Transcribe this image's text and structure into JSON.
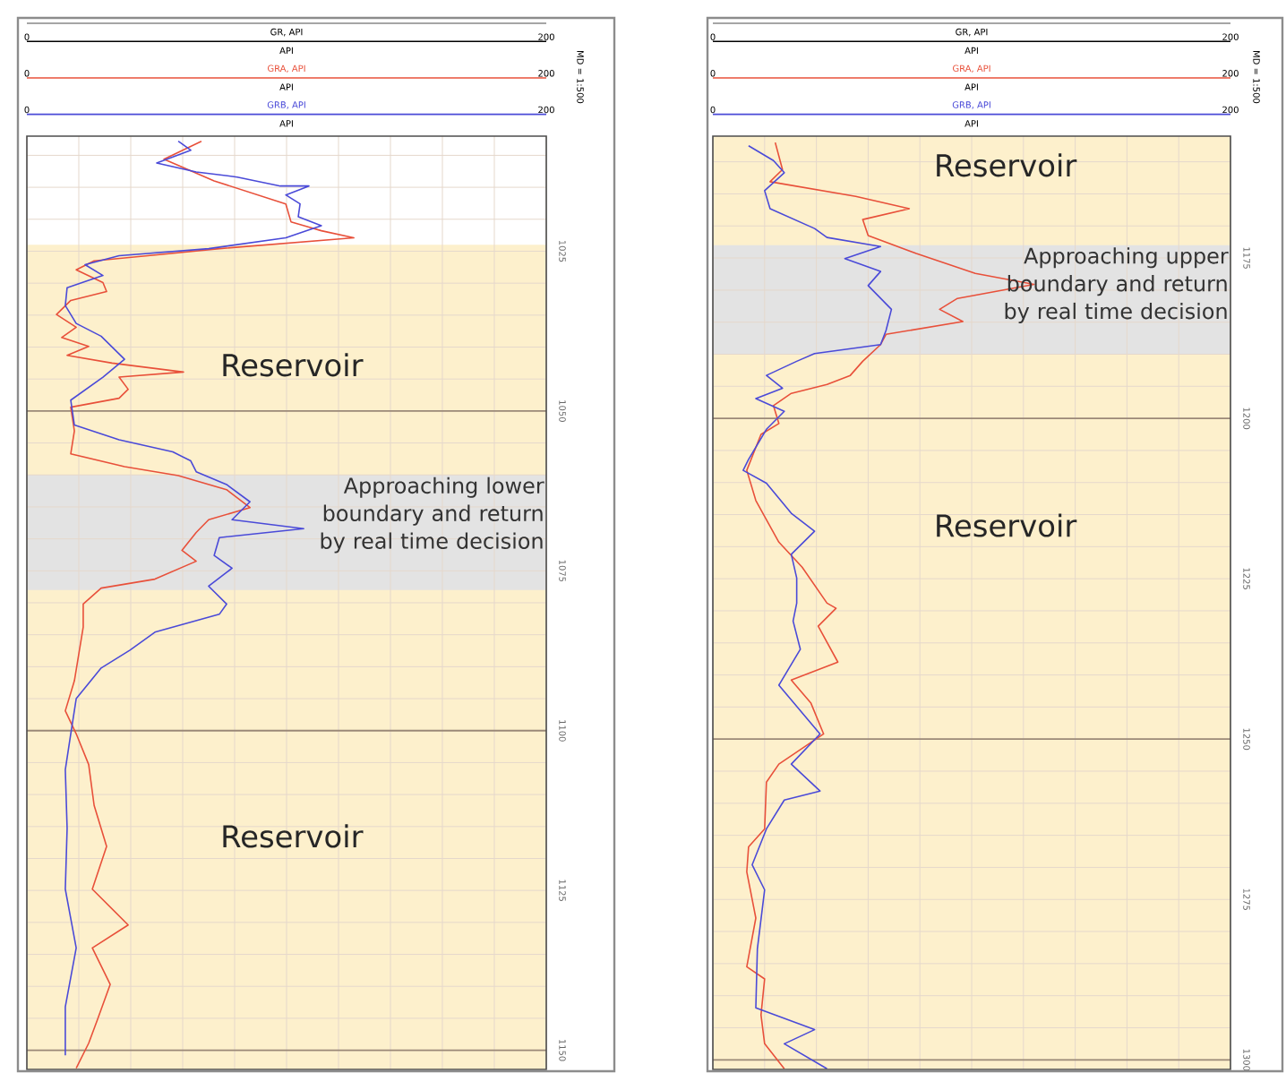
{
  "chart_data": [
    {
      "type": "line",
      "xlabel": "GR, API",
      "legend": "top",
      "grid": true,
      "xlim": [
        0,
        200
      ],
      "xticks": [
        0,
        {
          "value": 20,
          "label": null
        },
        {
          "value": 40,
          "label": null
        },
        {
          "value": 60,
          "label": null
        },
        {
          "value": 80,
          "label": null
        },
        {
          "value": 100,
          "label": null
        },
        {
          "value": 120,
          "label": null
        },
        {
          "value": 140,
          "label": null
        },
        {
          "value": 160,
          "label": null
        },
        {
          "value": 180,
          "label": null
        },
        200
      ],
      "ylim": [
        1153,
        1007
      ],
      "yticks": [
        {
          "value": 1010,
          "label": null
        },
        {
          "value": 1015,
          "label": null
        },
        {
          "value": 1020,
          "label": null
        },
        1025,
        {
          "value": 1030,
          "label": null
        },
        {
          "value": 1035,
          "label": null
        },
        {
          "value": 1040,
          "label": null
        },
        {
          "value": 1045,
          "label": null
        },
        1050,
        {
          "value": 1055,
          "label": null
        },
        {
          "value": 1060,
          "label": null
        },
        {
          "value": 1065,
          "label": null
        },
        {
          "value": 1070,
          "label": null
        },
        1075,
        {
          "value": 1080,
          "label": null
        },
        {
          "value": 1085,
          "label": null
        },
        {
          "value": 1090,
          "label": null
        },
        {
          "value": 1095,
          "label": null
        },
        1100,
        {
          "value": 1105,
          "label": null
        },
        {
          "value": 1110,
          "label": null
        },
        {
          "value": 1115,
          "label": null
        },
        {
          "value": 1120,
          "label": null
        },
        1125,
        {
          "value": 1130,
          "label": null
        },
        {
          "value": 1135,
          "label": null
        },
        {
          "value": 1140,
          "label": null
        },
        {
          "value": 1145,
          "label": null
        },
        1150
      ],
      "bands": [
        {
          "axis": "y",
          "from": 1024,
          "to": 1153,
          "color": "#fdf0cc"
        },
        {
          "axis": "y",
          "from": 1060,
          "to": 1078,
          "color": "#e3e3e3",
          "label": "Approaching lower  boundary and return by real time decision"
        }
      ],
      "series": [
        {
          "name": "GRA, API",
          "color": "#e8503a",
          "x": [
            67.2,
            52.8,
            72.1,
            99.7,
            101.7,
            113.4,
            125.9,
            74.1,
            46.6,
            25.9,
            19.0,
            29.3,
            30.7,
            16.9,
            11.4,
            19.0,
            13.4,
            23.8,
            15.5,
            32.8,
            60.3,
            35.5,
            39.0,
            35.5,
            16.9,
            18.3,
            16.9,
            37.6,
            58.3,
            76.9,
            85.9,
            70.0,
            65.2,
            59.7,
            65.2,
            49.3,
            28.6,
            21.7,
            21.7,
            18.3,
            14.8,
            19.0,
            23.8,
            25.9,
            30.7,
            25.2,
            39.0,
            25.2,
            32.1,
            27.2,
            23.8,
            19.0
          ],
          "values": [
            1007.8,
            1010.6,
            1014.0,
            1017.6,
            1020.4,
            1021.8,
            1022.9,
            1024.6,
            1025.7,
            1026.5,
            1027.9,
            1029.9,
            1031.3,
            1032.7,
            1034.9,
            1036.9,
            1038.5,
            1039.9,
            1041.3,
            1042.5,
            1043.9,
            1044.7,
            1046.6,
            1048.0,
            1049.4,
            1053.1,
            1056.7,
            1058.7,
            1060.1,
            1062.3,
            1065.1,
            1067.0,
            1069.0,
            1071.8,
            1073.5,
            1076.3,
            1077.7,
            1080.2,
            1083.8,
            1092.2,
            1096.9,
            1100.5,
            1105.3,
            1111.7,
            1118.1,
            1124.8,
            1130.4,
            1134.0,
            1139.7,
            1145.2,
            1148.9,
            1152.8
          ]
        },
        {
          "name": "GRB, API",
          "color": "#4a4ad8",
          "x": [
            58.3,
            63.1,
            50.0,
            65.2,
            81.0,
            97.6,
            108.6,
            99.7,
            105.2,
            104.5,
            113.4,
            99.7,
            70.0,
            35.5,
            22.4,
            29.3,
            15.5,
            14.8,
            19.0,
            28.6,
            37.6,
            29.3,
            16.9,
            18.3,
            35.5,
            56.2,
            63.1,
            65.2,
            76.9,
            85.9,
            79.0,
            106.6,
            74.1,
            72.1,
            79.0,
            70.0,
            76.9,
            74.1,
            49.3,
            39.7,
            28.6,
            19.0,
            16.9,
            14.8,
            15.5,
            14.8,
            19.0,
            14.8,
            14.8
          ],
          "values": [
            1007.8,
            1009.2,
            1011.2,
            1012.6,
            1013.4,
            1014.8,
            1014.8,
            1016.2,
            1017.6,
            1019.6,
            1021.0,
            1022.9,
            1024.6,
            1025.7,
            1027.1,
            1028.8,
            1030.7,
            1033.5,
            1036.3,
            1038.3,
            1041.9,
            1044.7,
            1048.3,
            1052.2,
            1054.5,
            1056.4,
            1057.8,
            1059.5,
            1061.5,
            1064.2,
            1067.0,
            1068.4,
            1069.8,
            1072.6,
            1074.6,
            1077.4,
            1080.2,
            1081.8,
            1084.6,
            1087.4,
            1090.2,
            1095.0,
            1100.5,
            1106.1,
            1115.3,
            1124.8,
            1134.0,
            1143.2,
            1150.8
          ]
        }
      ],
      "annotations": [
        "API",
        "API",
        "API",
        "MD = 1:500",
        "Reservoir",
        "Reservoir",
        "0",
        "200",
        "0",
        "200"
      ]
    },
    {
      "type": "line",
      "xlabel": "GR, API",
      "legend": "top",
      "grid": true,
      "xlim": [
        0,
        200
      ],
      "xticks": [
        0,
        {
          "value": 20,
          "label": null
        },
        {
          "value": 40,
          "label": null
        },
        {
          "value": 60,
          "label": null
        },
        {
          "value": 80,
          "label": null
        },
        {
          "value": 100,
          "label": null
        },
        {
          "value": 120,
          "label": null
        },
        {
          "value": 140,
          "label": null
        },
        {
          "value": 160,
          "label": null
        },
        {
          "value": 180,
          "label": null
        },
        200
      ],
      "ylim": [
        1301.5,
        1156
      ],
      "yticks": [
        {
          "value": 1160,
          "label": null
        },
        {
          "value": 1165,
          "label": null
        },
        {
          "value": 1170,
          "label": null
        },
        1175,
        {
          "value": 1180,
          "label": null
        },
        {
          "value": 1185,
          "label": null
        },
        {
          "value": 1190,
          "label": null
        },
        {
          "value": 1195,
          "label": null
        },
        1200,
        {
          "value": 1205,
          "label": null
        },
        {
          "value": 1210,
          "label": null
        },
        {
          "value": 1215,
          "label": null
        },
        {
          "value": 1220,
          "label": null
        },
        1225,
        {
          "value": 1230,
          "label": null
        },
        {
          "value": 1235,
          "label": null
        },
        {
          "value": 1240,
          "label": null
        },
        {
          "value": 1245,
          "label": null
        },
        1250,
        {
          "value": 1255,
          "label": null
        },
        {
          "value": 1260,
          "label": null
        },
        {
          "value": 1265,
          "label": null
        },
        {
          "value": 1270,
          "label": null
        },
        1275,
        {
          "value": 1280,
          "label": null
        },
        {
          "value": 1285,
          "label": null
        },
        {
          "value": 1290,
          "label": null
        },
        {
          "value": 1295,
          "label": null
        },
        1300
      ],
      "bands": [
        {
          "axis": "y",
          "from": 1156,
          "to": 1301.5,
          "color": "#fdf0cc"
        },
        {
          "axis": "y",
          "from": 1173,
          "to": 1190,
          "color": "#e3e3e3",
          "label": "Approaching upper  boundary and return by real time decision"
        }
      ],
      "series": [
        {
          "name": "GRA, API",
          "color": "#e8503a",
          "x": [
            24.1,
            26.9,
            22.1,
            55.2,
            75.9,
            57.9,
            60.0,
            78.6,
            101.4,
            124.1,
            94.5,
            87.6,
            96.6,
            66.9,
            64.8,
            57.9,
            53.1,
            44.1,
            30.3,
            23.4,
            25.5,
            18.6,
            13.1,
            16.6,
            25.5,
            34.5,
            44.1,
            47.6,
            40.7,
            48.3,
            30.3,
            37.9,
            42.8,
            25.5,
            20.7,
            20.0,
            13.8,
            13.1,
            16.6,
            13.1,
            20.0,
            18.6,
            20.0,
            27.6
          ],
          "values": [
            1157.0,
            1161.2,
            1163.1,
            1165.4,
            1167.3,
            1169.0,
            1171.5,
            1174.3,
            1177.4,
            1179.1,
            1181.3,
            1183.0,
            1184.9,
            1186.9,
            1188.5,
            1191.1,
            1193.3,
            1194.7,
            1196.1,
            1198.0,
            1200.8,
            1202.5,
            1208.1,
            1212.8,
            1219.3,
            1223.2,
            1228.8,
            1229.6,
            1232.4,
            1238.0,
            1240.8,
            1244.4,
            1249.2,
            1253.9,
            1256.7,
            1264.0,
            1266.8,
            1270.7,
            1277.9,
            1285.5,
            1287.4,
            1293.0,
            1297.5,
            1301.4
          ]
        },
        {
          "name": "GRB, API",
          "color": "#4a4ad8",
          "x": [
            13.8,
            23.4,
            27.6,
            20.0,
            22.1,
            39.3,
            44.1,
            64.8,
            51.0,
            64.8,
            60.0,
            69.0,
            66.9,
            64.8,
            39.3,
            32.4,
            20.7,
            26.9,
            16.6,
            27.6,
            20.7,
            13.8,
            11.7,
            20.7,
            30.3,
            39.3,
            30.3,
            32.4,
            32.4,
            31.0,
            33.8,
            25.5,
            41.4,
            30.3,
            41.4,
            27.6,
            20.7,
            15.2,
            20.0,
            17.2,
            16.6,
            39.3,
            27.6,
            44.1
          ],
          "values": [
            1157.5,
            1159.8,
            1161.7,
            1164.5,
            1167.3,
            1170.4,
            1171.8,
            1173.2,
            1175.1,
            1177.1,
            1179.3,
            1183.0,
            1186.3,
            1188.5,
            1189.9,
            1191.1,
            1193.3,
            1195.3,
            1196.9,
            1198.9,
            1201.7,
            1206.4,
            1208.1,
            1210.1,
            1214.8,
            1217.6,
            1221.2,
            1224.9,
            1228.8,
            1231.6,
            1236.0,
            1241.6,
            1249.2,
            1253.9,
            1258.1,
            1259.5,
            1264.0,
            1269.6,
            1273.5,
            1282.7,
            1291.9,
            1295.3,
            1297.5,
            1301.4
          ]
        }
      ],
      "annotations": [
        "API",
        "API",
        "API",
        "MD = 1:500",
        "Reservoir",
        "Reservoir",
        "0",
        "200",
        "0",
        "200"
      ]
    }
  ]
}
